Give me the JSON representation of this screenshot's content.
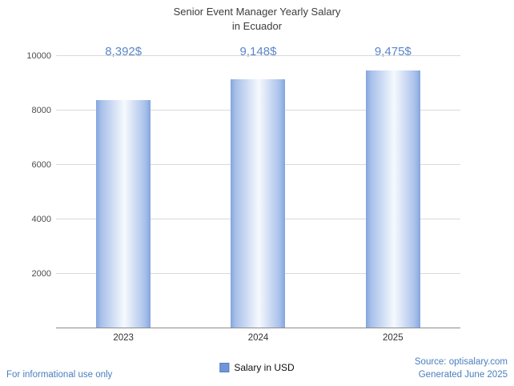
{
  "title": {
    "line1": "Senior Event Manager Yearly Salary",
    "line2": "in Ecuador"
  },
  "chart_data": {
    "type": "bar",
    "categories": [
      "2023",
      "2024",
      "2025"
    ],
    "values": [
      8392,
      9148,
      9475
    ],
    "value_labels": [
      "8,392$",
      "9,148$",
      "9,475$"
    ],
    "series_name": "Salary in USD",
    "title": "Senior Event Manager Yearly Salary in Ecuador",
    "xlabel": "",
    "ylabel": "",
    "ylim": [
      0,
      10000
    ],
    "yticks": [
      2000,
      4000,
      6000,
      8000,
      10000
    ],
    "grid": true,
    "legend_position": "bottom"
  },
  "legend": {
    "label": "Salary in USD",
    "swatch_color": "#7096d8"
  },
  "footer": {
    "left": "For informational use only",
    "source": "Source: optisalary.com",
    "generated": "Generated June 2025"
  },
  "colors": {
    "bar_edge": "#84a5df",
    "bar_center": "#f6f9fe",
    "value_label": "#5b87c9",
    "footer_blue": "#4a7ebd",
    "title_gray": "#3d3d3d",
    "gridline": "#d9d9d9",
    "axis": "#8c8c8c"
  }
}
